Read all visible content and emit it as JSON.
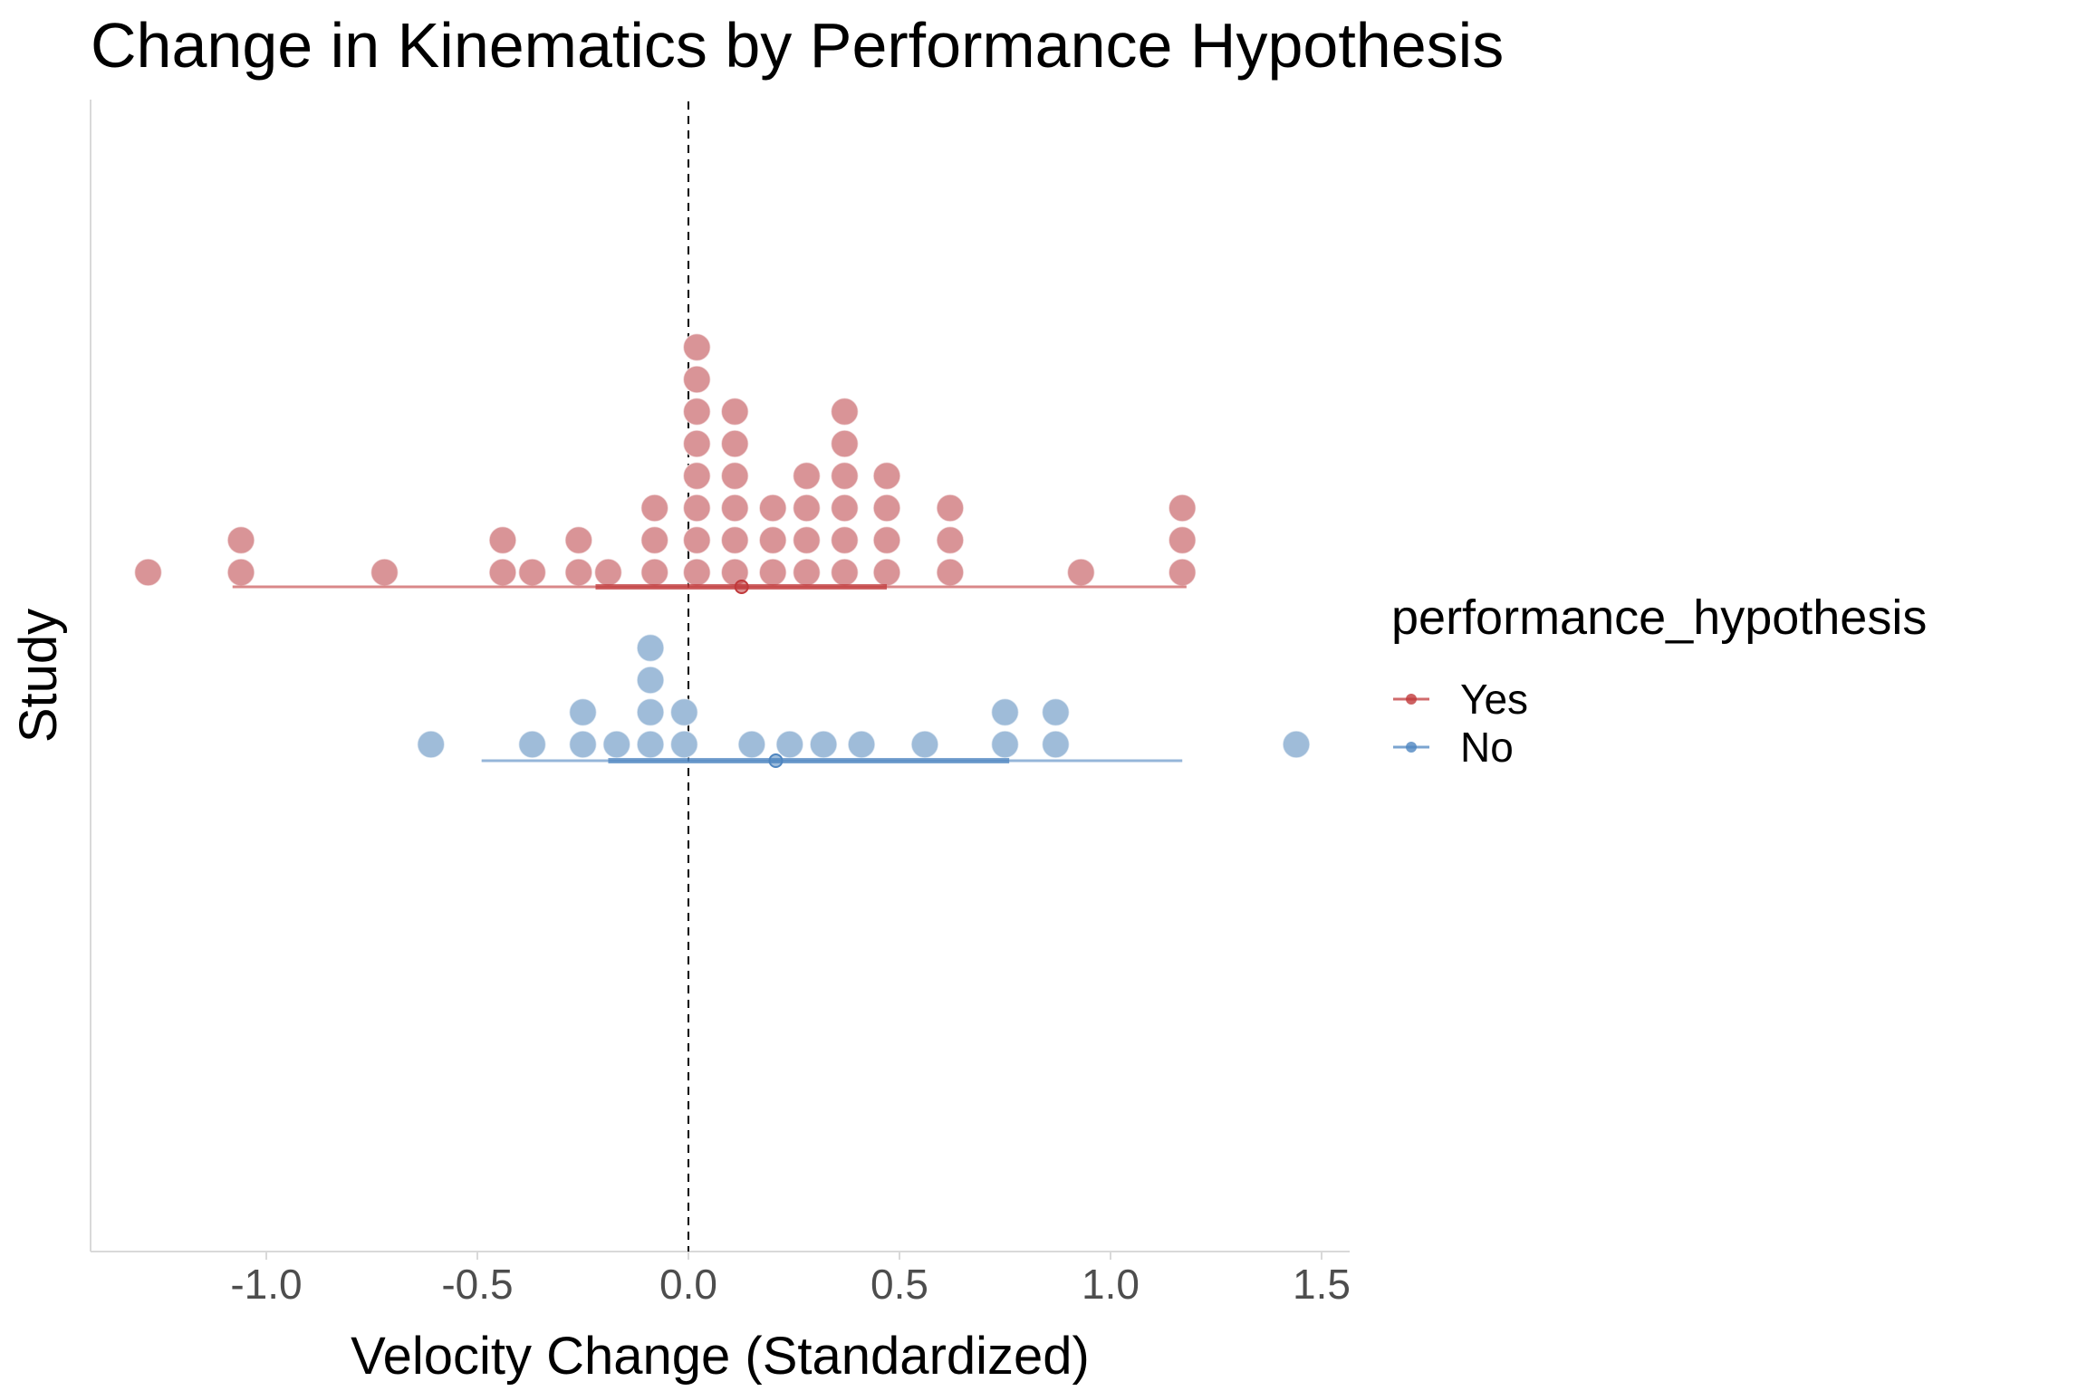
{
  "chart_data": {
    "type": "dotplot",
    "title": "Change in Kinematics by Performance Hypothesis",
    "xlabel": "Velocity Change (Standardized)",
    "ylabel": "Study",
    "xlim": [
      -1.42,
      1.56
    ],
    "x_ticks": [
      -1.0,
      -0.5,
      0.0,
      0.5,
      1.0,
      1.5
    ],
    "x_tick_labels": [
      "-1.0",
      "-0.5",
      "0.0",
      "0.5",
      "1.0",
      "1.5"
    ],
    "reference_line": {
      "x": 0,
      "style": "dashed"
    },
    "grid": false,
    "legend": {
      "title": "performance_hypothesis",
      "position": "right",
      "entries": [
        "Yes",
        "No"
      ]
    },
    "series": [
      {
        "name": "Yes",
        "color": "#c0393b",
        "dot_color": "#d99497",
        "stacks": [
          {
            "x": -1.28,
            "count": 1
          },
          {
            "x": -1.06,
            "count": 2
          },
          {
            "x": -0.72,
            "count": 1
          },
          {
            "x": -0.44,
            "count": 2
          },
          {
            "x": -0.37,
            "count": 1
          },
          {
            "x": -0.26,
            "count": 2
          },
          {
            "x": -0.19,
            "count": 1
          },
          {
            "x": -0.08,
            "count": 3
          },
          {
            "x": 0.02,
            "count": 8
          },
          {
            "x": 0.11,
            "count": 6
          },
          {
            "x": 0.2,
            "count": 3
          },
          {
            "x": 0.28,
            "count": 4
          },
          {
            "x": 0.37,
            "count": 6
          },
          {
            "x": 0.47,
            "count": 4
          },
          {
            "x": 0.62,
            "count": 3
          },
          {
            "x": 0.93,
            "count": 1
          },
          {
            "x": 1.17,
            "count": 3
          }
        ],
        "estimate": 0.126,
        "inner_interval": [
          -0.22,
          0.47
        ],
        "outer_interval": [
          -1.08,
          1.18
        ]
      },
      {
        "name": "No",
        "color": "#4f86c0",
        "dot_color": "#9fbcd9",
        "stacks": [
          {
            "x": -0.61,
            "count": 1
          },
          {
            "x": -0.37,
            "count": 1
          },
          {
            "x": -0.25,
            "count": 2
          },
          {
            "x": -0.17,
            "count": 1
          },
          {
            "x": -0.09,
            "count": 4
          },
          {
            "x": -0.01,
            "count": 2
          },
          {
            "x": 0.15,
            "count": 1
          },
          {
            "x": 0.24,
            "count": 1
          },
          {
            "x": 0.32,
            "count": 1
          },
          {
            "x": 0.41,
            "count": 1
          },
          {
            "x": 0.56,
            "count": 1
          },
          {
            "x": 0.75,
            "count": 2
          },
          {
            "x": 0.87,
            "count": 2
          },
          {
            "x": 1.44,
            "count": 1
          }
        ],
        "estimate": 0.207,
        "inner_interval": [
          -0.19,
          0.76
        ],
        "outer_interval": [
          -0.49,
          1.17
        ]
      }
    ]
  }
}
